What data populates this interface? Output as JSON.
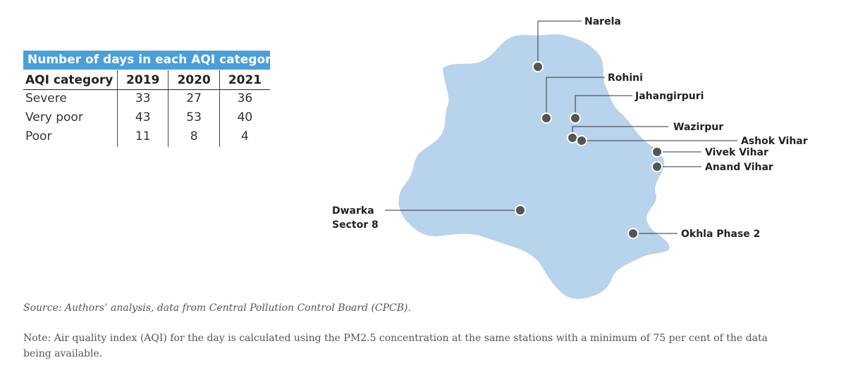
{
  "table": {
    "title": "Number of days in each AQI category",
    "headers": [
      "AQI category",
      "2019",
      "2020",
      "2021"
    ],
    "rows": [
      [
        "Severe",
        "33",
        "27",
        "36"
      ],
      [
        "Very poor",
        "43",
        "53",
        "40"
      ],
      [
        "Poor",
        "11",
        "8",
        "4"
      ]
    ]
  },
  "map": {
    "region_color": "#b8d3ec",
    "marker_color": "#555555",
    "stations": {
      "narela": "Narela",
      "rohini": "Rohini",
      "jahangirpuri": "Jahangirpuri",
      "wazirpur": "Wazirpur",
      "ashok_vihar": "Ashok Vihar",
      "vivek_vihar": "Vivek Vihar",
      "anand_vihar": "Anand Vihar",
      "dwarka_line1": "Dwarka",
      "dwarka_line2": "Sector 8",
      "okhla": "Okhla Phase 2"
    }
  },
  "source": "Source: Authors’ analysis, data from Central Pollution Control Board (CPCB).",
  "note": "Note: Air quality index (AQI) for the day is calculated using the PM2.5 concentration at the same stations with a minimum of 75 per cent of the data being available."
}
